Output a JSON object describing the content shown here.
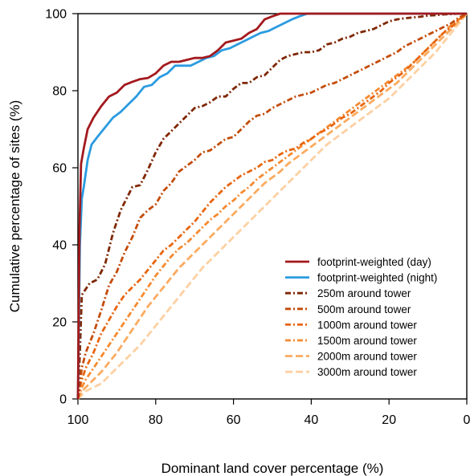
{
  "chart_data": {
    "type": "line",
    "title": "",
    "xlabel": "Dominant land cover percentage (%)",
    "ylabel": "Cumulative percentage of sites (%)",
    "xlim": [
      100,
      0
    ],
    "ylim": [
      0,
      100
    ],
    "x_reversed": true,
    "xticks": [
      100,
      80,
      60,
      40,
      20,
      0
    ],
    "yticks": [
      0,
      20,
      40,
      60,
      80,
      100
    ],
    "xtick_labels": [
      "100",
      "80",
      "60",
      "40",
      "20",
      "0"
    ],
    "ytick_labels": [
      "0",
      "20",
      "40",
      "60",
      "80",
      "100"
    ],
    "grid": false,
    "legend_position": "bottom-right",
    "series": [
      {
        "name": "footprint-weighted (day)",
        "color": "#a3191d",
        "dash": "solid",
        "x": [
          100,
          99.6,
          99.2,
          98.5,
          97.5,
          96,
          94,
          92,
          90,
          88,
          86,
          84,
          82,
          80,
          78,
          76,
          74,
          72,
          70,
          68,
          66,
          64,
          62,
          60,
          58,
          56,
          54,
          52,
          50,
          48,
          46,
          44,
          42,
          40,
          20,
          0
        ],
        "y": [
          0,
          44,
          61,
          65,
          70,
          73,
          76,
          78.5,
          79.5,
          81.5,
          82.3,
          83,
          83.3,
          84.5,
          86.5,
          87.5,
          87.5,
          88,
          88.5,
          88.5,
          89,
          90.5,
          92.5,
          93,
          93.5,
          95,
          96,
          98.5,
          99.3,
          100,
          100,
          100,
          100,
          100,
          100,
          100
        ]
      },
      {
        "name": "footprint-weighted (night)",
        "color": "#2b9be0",
        "dash": "solid",
        "x": [
          100,
          99.5,
          99,
          98.5,
          97.5,
          96.5,
          95,
          93,
          91,
          89,
          87,
          85,
          83,
          81,
          79,
          77,
          75,
          73,
          71,
          69,
          67,
          65,
          63,
          61,
          59,
          57,
          55,
          53,
          51,
          49,
          47,
          45,
          43,
          41,
          40,
          20,
          0
        ],
        "y": [
          0,
          40,
          52,
          55,
          62,
          66,
          68,
          70.5,
          73,
          74.5,
          76.5,
          78.5,
          81,
          81.5,
          83.5,
          84.5,
          86.5,
          86.5,
          86.5,
          87.5,
          88.5,
          89,
          90.5,
          91,
          92,
          93,
          94,
          95,
          95.5,
          96.5,
          97.5,
          98.5,
          99.3,
          100,
          100,
          100,
          100
        ]
      },
      {
        "name": "250m around tower",
        "color": "#7f2704",
        "dash": "7,3,2,3",
        "x": [
          100,
          99.5,
          99,
          97,
          95,
          93,
          91,
          89,
          88,
          86,
          84,
          82,
          80,
          78,
          76,
          74,
          72,
          70,
          68,
          66,
          64,
          62,
          60,
          58,
          56,
          54,
          52,
          50,
          48,
          46,
          44,
          42,
          40,
          38,
          36,
          34,
          32,
          30,
          28,
          26,
          24,
          22,
          20,
          18,
          16,
          14,
          12,
          10,
          8,
          6,
          4,
          2,
          0
        ],
        "y": [
          0,
          12,
          27,
          30,
          31,
          35,
          43,
          49,
          51,
          55,
          55.5,
          59.5,
          64,
          67.5,
          69.5,
          71.5,
          73.5,
          75.5,
          76,
          77,
          78.5,
          78.5,
          80.5,
          82,
          82,
          83.5,
          84,
          86,
          88,
          89,
          89.5,
          90,
          90,
          90.5,
          92,
          92.5,
          93.5,
          94,
          95,
          95.5,
          96,
          97,
          98,
          98.5,
          98.8,
          99,
          99.2,
          99.5,
          99.6,
          99.8,
          99.9,
          100,
          100
        ]
      },
      {
        "name": "500m around tower",
        "color": "#c44c0a",
        "dash": "7,3,2,3",
        "x": [
          100,
          99.5,
          99,
          98,
          96,
          94,
          92,
          90,
          88,
          86,
          84,
          82,
          80,
          78,
          76,
          74,
          72,
          70,
          68,
          66,
          64,
          62,
          60,
          58,
          56,
          54,
          52,
          50,
          48,
          46,
          44,
          42,
          40,
          38,
          36,
          34,
          32,
          30,
          28,
          26,
          24,
          22,
          20,
          18,
          16,
          14,
          12,
          10,
          8,
          6,
          4,
          2,
          0
        ],
        "y": [
          0,
          4,
          8,
          12,
          17,
          23,
          29.5,
          33,
          38,
          42,
          47,
          49,
          50.5,
          54,
          56,
          59,
          60.5,
          62,
          64,
          64.5,
          66,
          67.5,
          68,
          70,
          72,
          73.5,
          74,
          75.5,
          76.5,
          77.5,
          78.5,
          79,
          79.5,
          80.5,
          81.5,
          82,
          83,
          84,
          85,
          86,
          87,
          88,
          89,
          90,
          91.5,
          92.5,
          93.5,
          94.5,
          95.5,
          96.5,
          97.5,
          99,
          100
        ]
      },
      {
        "name": "1000m around tower",
        "color": "#e8650f",
        "dash": "7,3,2,3",
        "x": [
          100,
          99.5,
          99,
          98,
          96,
          94,
          92,
          90,
          88,
          86,
          84,
          82,
          80,
          78,
          76,
          74,
          72,
          70,
          68,
          66,
          64,
          62,
          60,
          58,
          56,
          54,
          52,
          50,
          48,
          46,
          44,
          42,
          40,
          38,
          36,
          34,
          32,
          30,
          28,
          26,
          24,
          22,
          20,
          18,
          16,
          14,
          12,
          10,
          8,
          6,
          4,
          2,
          0
        ],
        "y": [
          0,
          3,
          5,
          8,
          12,
          17,
          20.5,
          24,
          27,
          29,
          31,
          33.5,
          36,
          38.5,
          40,
          42,
          44,
          46,
          48.5,
          51,
          53,
          55,
          56.5,
          58,
          59,
          60,
          61.5,
          62,
          63.5,
          64.5,
          65,
          66.5,
          67.5,
          69,
          70,
          71.5,
          73,
          74,
          75.5,
          77,
          78.5,
          80,
          82,
          83.5,
          85,
          87,
          89,
          91,
          93,
          95,
          96.5,
          98.5,
          100
        ]
      },
      {
        "name": "1500m around tower",
        "color": "#f58a30",
        "dash": "7,3,2,3",
        "x": [
          100,
          99.5,
          99,
          98,
          96,
          94,
          92,
          90,
          88,
          86,
          84,
          82,
          80,
          78,
          76,
          74,
          72,
          70,
          68,
          66,
          64,
          62,
          60,
          58,
          56,
          54,
          52,
          50,
          48,
          46,
          44,
          42,
          40,
          38,
          36,
          34,
          32,
          30,
          28,
          26,
          24,
          22,
          20,
          18,
          16,
          14,
          12,
          10,
          8,
          6,
          4,
          2,
          0
        ],
        "y": [
          0,
          1.5,
          3,
          5,
          8,
          11,
          14,
          17,
          20,
          23,
          26,
          29,
          32,
          34.5,
          37,
          39,
          40.5,
          42.5,
          44.5,
          46.5,
          48,
          50,
          51.5,
          53.5,
          55,
          57,
          58.5,
          60,
          61.5,
          63,
          64.5,
          66,
          67.5,
          69,
          70.5,
          72,
          73.5,
          75,
          76.5,
          78,
          79.5,
          81,
          82.5,
          84,
          85.5,
          87,
          89,
          91,
          93,
          95,
          97,
          98.5,
          100
        ]
      },
      {
        "name": "2000m around tower",
        "color": "#fbab60",
        "dash": "9,4",
        "x": [
          100,
          99.5,
          99,
          98,
          96,
          94,
          92,
          90,
          88,
          86,
          84,
          82,
          80,
          78,
          76,
          74,
          72,
          70,
          68,
          66,
          64,
          62,
          60,
          58,
          56,
          54,
          52,
          50,
          48,
          46,
          44,
          42,
          40,
          38,
          36,
          34,
          32,
          30,
          28,
          26,
          24,
          22,
          20,
          18,
          16,
          14,
          12,
          10,
          8,
          6,
          4,
          2,
          0
        ],
        "y": [
          0,
          1,
          2,
          3,
          5,
          7,
          9.5,
          12,
          15,
          18,
          21,
          24,
          26.5,
          29,
          31.5,
          34,
          36,
          38,
          40,
          42,
          44,
          46,
          48,
          50,
          52,
          54,
          56,
          57.5,
          59,
          61,
          62.5,
          64,
          65.5,
          67,
          68.5,
          70,
          71.5,
          73,
          74.5,
          76,
          77.5,
          79,
          80.5,
          82,
          84,
          86,
          88,
          90,
          92,
          94,
          96,
          98,
          100
        ]
      },
      {
        "name": "3000m around tower",
        "color": "#fdd0a2",
        "dash": "9,4",
        "x": [
          100,
          99.5,
          99,
          98,
          96,
          94,
          92,
          90,
          88,
          86,
          84,
          82,
          80,
          78,
          76,
          74,
          72,
          70,
          68,
          66,
          64,
          62,
          60,
          58,
          56,
          54,
          52,
          50,
          48,
          46,
          44,
          42,
          40,
          38,
          36,
          34,
          32,
          30,
          28,
          26,
          24,
          22,
          20,
          18,
          16,
          14,
          12,
          10,
          8,
          6,
          4,
          2,
          0
        ],
        "y": [
          0,
          0.5,
          1,
          2,
          3,
          4,
          6,
          8,
          10,
          12,
          14,
          16.5,
          19,
          21.5,
          24,
          26.5,
          29,
          31.5,
          34,
          36,
          38,
          40,
          42,
          44,
          46,
          48,
          50,
          52,
          54,
          56,
          58,
          60,
          62,
          64,
          66,
          67.5,
          69,
          70.5,
          72,
          73.5,
          75,
          76.5,
          78,
          80,
          82,
          84,
          86,
          88,
          90,
          92.5,
          95,
          97.5,
          100
        ]
      }
    ]
  }
}
